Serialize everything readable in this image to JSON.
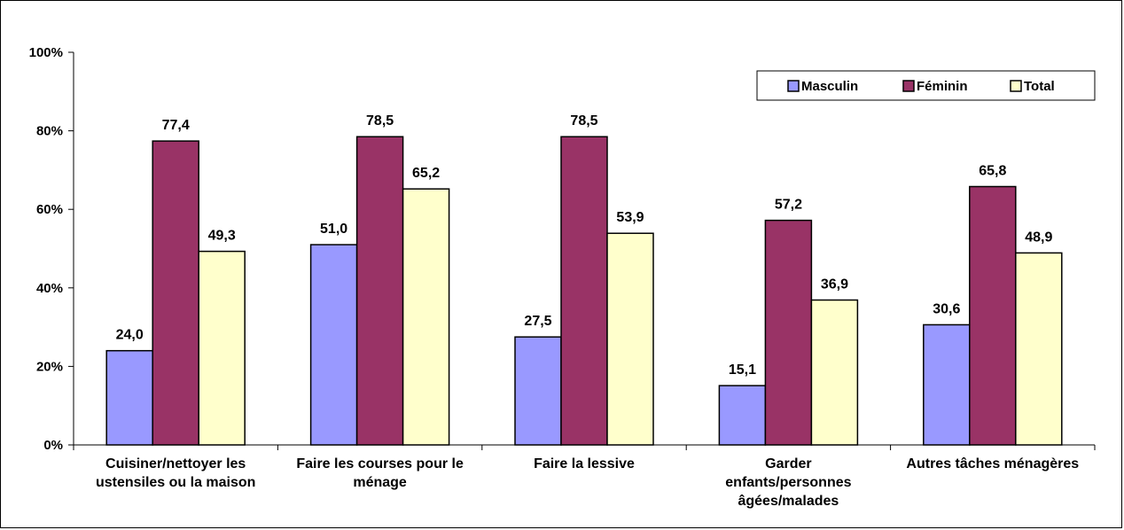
{
  "chart_data": {
    "type": "bar",
    "categories": [
      [
        "Cuisiner/nettoyer les",
        "ustensiles ou la maison"
      ],
      [
        "Faire les courses pour le",
        "ménage"
      ],
      [
        "Faire la lessive"
      ],
      [
        "Garder",
        "enfants/personnes",
        "âgées/malades"
      ],
      [
        "Autres tâches ménagères"
      ]
    ],
    "series": [
      {
        "name": "Masculin",
        "color": "#9999ff",
        "values": [
          24.0,
          51.0,
          27.5,
          15.1,
          30.6
        ],
        "labels": [
          "24,0",
          "51,0",
          "27,5",
          "15,1",
          "30,6"
        ]
      },
      {
        "name": "Féminin",
        "color": "#993366",
        "values": [
          77.4,
          78.5,
          78.5,
          57.2,
          65.8
        ],
        "labels": [
          "77,4",
          "78,5",
          "78,5",
          "57,2",
          "65,8"
        ]
      },
      {
        "name": "Total",
        "color": "#ffffcc",
        "values": [
          49.3,
          65.2,
          53.9,
          36.9,
          48.9
        ],
        "labels": [
          "49,3",
          "65,2",
          "53,9",
          "36,9",
          "48,9"
        ]
      }
    ],
    "yticks": [
      "0%",
      "20%",
      "40%",
      "60%",
      "80%",
      "100%"
    ],
    "ylim": [
      0,
      100
    ],
    "grid": false,
    "legend_position": "top-right",
    "title": "",
    "xlabel": "",
    "ylabel": ""
  }
}
